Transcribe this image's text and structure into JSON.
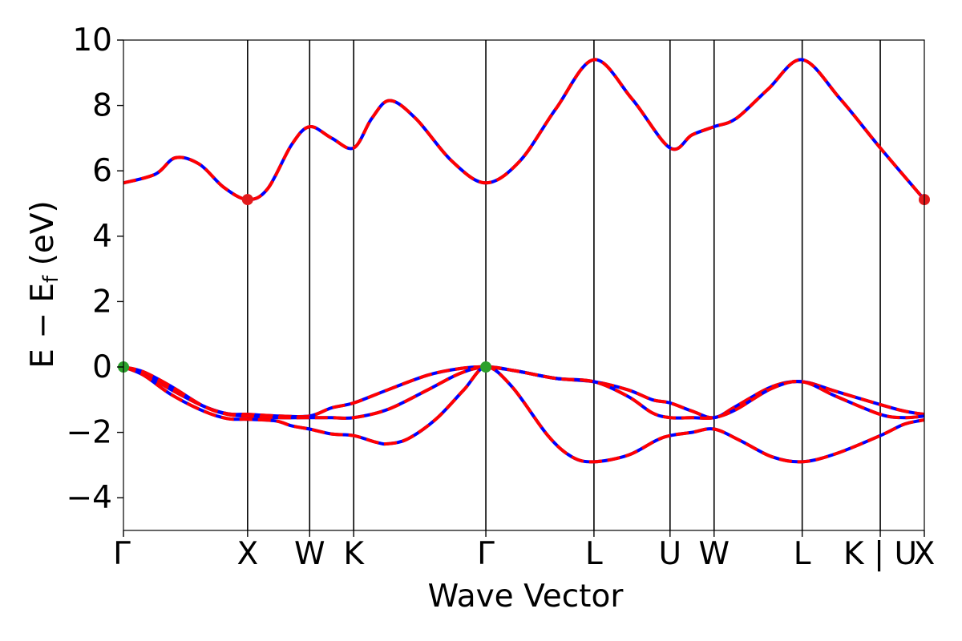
{
  "chart_data": {
    "type": "line",
    "xlabel": "Wave Vector",
    "ylabel_parts": {
      "main": "E − E",
      "sub": "f",
      "unit": " (eV)"
    },
    "ylim": [
      -5,
      10
    ],
    "yticks": [
      -4,
      -2,
      0,
      2,
      4,
      6,
      8,
      10
    ],
    "ytick_labels": [
      "−4",
      "−2",
      "0",
      "2",
      "4",
      "6",
      "8",
      "10"
    ],
    "xlim": [
      0,
      20
    ],
    "kpoints": [
      {
        "label": "Γ",
        "x": 0
      },
      {
        "label": "X",
        "x": 3.1
      },
      {
        "label": "W",
        "x": 4.65
      },
      {
        "label": "K",
        "x": 5.75
      },
      {
        "label": "Γ",
        "x": 9.05
      },
      {
        "label": "L",
        "x": 11.75
      },
      {
        "label": "U",
        "x": 13.65
      },
      {
        "label": "W",
        "x": 14.75
      },
      {
        "label": "L",
        "x": 16.95
      },
      {
        "label": "K | U",
        "x": 18.9
      },
      {
        "label": "X",
        "x": 20
      }
    ],
    "series_style": [
      {
        "color": "#0000ff",
        "dash": "none"
      },
      {
        "color": "#ff0000",
        "dash": "dashed"
      }
    ],
    "bands": [
      {
        "points": [
          [
            0,
            5.63
          ],
          [
            0.8,
            5.9
          ],
          [
            1.3,
            6.4
          ],
          [
            1.9,
            6.2
          ],
          [
            2.5,
            5.5
          ],
          [
            3.1,
            5.12
          ],
          [
            3.6,
            5.45
          ],
          [
            4.2,
            6.8
          ],
          [
            4.65,
            7.35
          ],
          [
            5.2,
            7.0
          ],
          [
            5.75,
            6.7
          ],
          [
            6.2,
            7.6
          ],
          [
            6.65,
            8.15
          ],
          [
            7.3,
            7.6
          ],
          [
            8.2,
            6.3
          ],
          [
            9.05,
            5.63
          ],
          [
            9.9,
            6.3
          ],
          [
            10.8,
            7.9
          ],
          [
            11.75,
            9.4
          ],
          [
            12.7,
            8.2
          ],
          [
            13.65,
            6.7
          ],
          [
            14.2,
            7.1
          ],
          [
            14.75,
            7.35
          ],
          [
            15.3,
            7.6
          ],
          [
            16.1,
            8.5
          ],
          [
            16.95,
            9.4
          ],
          [
            17.9,
            8.2
          ],
          [
            18.9,
            6.7
          ],
          [
            20,
            5.12
          ]
        ]
      },
      {
        "points": [
          [
            0,
            0
          ],
          [
            0.5,
            -0.2
          ],
          [
            1.2,
            -0.7
          ],
          [
            2.0,
            -1.2
          ],
          [
            2.6,
            -1.43
          ],
          [
            3.1,
            -1.45
          ],
          [
            3.9,
            -1.5
          ],
          [
            4.65,
            -1.5
          ],
          [
            5.2,
            -1.25
          ],
          [
            5.75,
            -1.1
          ],
          [
            6.6,
            -0.7
          ],
          [
            7.6,
            -0.25
          ],
          [
            8.4,
            -0.05
          ],
          [
            9.05,
            0
          ],
          [
            9.8,
            -0.12
          ],
          [
            10.8,
            -0.35
          ],
          [
            11.75,
            -0.45
          ],
          [
            12.6,
            -0.7
          ],
          [
            13.2,
            -1.0
          ],
          [
            13.65,
            -1.1
          ],
          [
            14.2,
            -1.35
          ],
          [
            14.75,
            -1.55
          ],
          [
            15.3,
            -1.2
          ],
          [
            16.2,
            -0.6
          ],
          [
            16.95,
            -0.45
          ],
          [
            17.8,
            -0.75
          ],
          [
            18.9,
            -1.15
          ],
          [
            19.5,
            -1.35
          ],
          [
            20,
            -1.45
          ]
        ]
      },
      {
        "points": [
          [
            0,
            0
          ],
          [
            0.5,
            -0.15
          ],
          [
            1.2,
            -0.6
          ],
          [
            2.0,
            -1.2
          ],
          [
            2.6,
            -1.45
          ],
          [
            3.1,
            -1.5
          ],
          [
            3.9,
            -1.55
          ],
          [
            4.65,
            -1.55
          ],
          [
            5.2,
            -1.55
          ],
          [
            5.75,
            -1.55
          ],
          [
            6.6,
            -1.3
          ],
          [
            7.6,
            -0.7
          ],
          [
            8.4,
            -0.2
          ],
          [
            9.05,
            0
          ],
          [
            9.8,
            -0.12
          ],
          [
            10.8,
            -0.35
          ],
          [
            11.75,
            -0.45
          ],
          [
            12.6,
            -0.9
          ],
          [
            13.2,
            -1.4
          ],
          [
            13.65,
            -1.55
          ],
          [
            14.2,
            -1.55
          ],
          [
            14.75,
            -1.55
          ],
          [
            15.3,
            -1.3
          ],
          [
            16.2,
            -0.65
          ],
          [
            16.95,
            -0.45
          ],
          [
            17.8,
            -0.9
          ],
          [
            18.9,
            -1.45
          ],
          [
            19.5,
            -1.55
          ],
          [
            20,
            -1.5
          ]
        ]
      },
      {
        "points": [
          [
            0,
            0
          ],
          [
            0.5,
            -0.25
          ],
          [
            1.2,
            -0.85
          ],
          [
            2.0,
            -1.35
          ],
          [
            2.6,
            -1.58
          ],
          [
            3.1,
            -1.6
          ],
          [
            3.8,
            -1.65
          ],
          [
            4.2,
            -1.8
          ],
          [
            4.65,
            -1.9
          ],
          [
            5.2,
            -2.05
          ],
          [
            5.75,
            -2.1
          ],
          [
            6.3,
            -2.3
          ],
          [
            6.6,
            -2.35
          ],
          [
            7.1,
            -2.2
          ],
          [
            7.8,
            -1.6
          ],
          [
            8.5,
            -0.7
          ],
          [
            9.05,
            0
          ],
          [
            9.7,
            -0.6
          ],
          [
            10.6,
            -2.1
          ],
          [
            11.2,
            -2.75
          ],
          [
            11.75,
            -2.9
          ],
          [
            12.6,
            -2.7
          ],
          [
            13.3,
            -2.25
          ],
          [
            13.65,
            -2.1
          ],
          [
            14.2,
            -2.0
          ],
          [
            14.75,
            -1.9
          ],
          [
            15.4,
            -2.25
          ],
          [
            16.2,
            -2.75
          ],
          [
            16.95,
            -2.9
          ],
          [
            17.8,
            -2.65
          ],
          [
            18.9,
            -2.1
          ],
          [
            19.5,
            -1.75
          ],
          [
            20,
            -1.62
          ]
        ]
      }
    ],
    "markers": [
      {
        "x": 3.1,
        "y": 5.12,
        "color": "#e31a1c"
      },
      {
        "x": 20,
        "y": 5.12,
        "color": "#e31a1c"
      },
      {
        "x": 0,
        "y": 0,
        "color": "#2ca02c"
      },
      {
        "x": 9.05,
        "y": 0,
        "color": "#2ca02c"
      }
    ]
  }
}
